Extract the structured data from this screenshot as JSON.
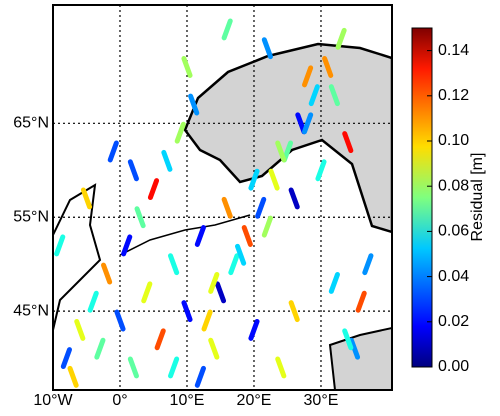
{
  "chart_data": {
    "type": "track-map",
    "colorbar_label": "Residual [m]",
    "xlim": [
      -10,
      40.6
    ],
    "ylim": [
      36.6,
      77.6
    ],
    "clim": [
      0,
      0.15
    ],
    "xticks": [
      {
        "value": -10,
        "label": "10°W"
      },
      {
        "value": 0,
        "label": "0°"
      },
      {
        "value": 10,
        "label": "10°E"
      },
      {
        "value": 20,
        "label": "20°E"
      },
      {
        "value": 30,
        "label": "30°E"
      }
    ],
    "yticks": [
      {
        "value": 45,
        "label": "45°N"
      },
      {
        "value": 55,
        "label": "55°N"
      },
      {
        "value": 65,
        "label": "65°N"
      }
    ],
    "cticks": [
      {
        "value": 0,
        "label": "0.00"
      },
      {
        "value": 0.02,
        "label": "0.02"
      },
      {
        "value": 0.04,
        "label": "0.04"
      },
      {
        "value": 0.06,
        "label": "0.06"
      },
      {
        "value": 0.08,
        "label": "0.08"
      },
      {
        "value": 0.1,
        "label": "0.10"
      },
      {
        "value": 0.12,
        "label": "0.12"
      },
      {
        "value": 0.14,
        "label": "0.14"
      }
    ],
    "lon": [
      -8,
      -6,
      -4,
      -2,
      1,
      3,
      5,
      7,
      9,
      11,
      13,
      15,
      17,
      19,
      21,
      23,
      25,
      27,
      29,
      31,
      33,
      35,
      -9,
      -5,
      -1,
      2,
      6,
      10,
      14,
      18,
      22,
      26,
      30,
      34,
      37,
      -7,
      -3,
      0,
      4,
      8,
      12,
      16,
      20,
      24,
      28,
      32,
      36,
      2,
      8,
      14,
      20,
      26,
      32,
      10,
      16,
      22,
      28,
      34,
      12,
      24
    ],
    "lat": [
      40,
      43,
      46,
      49,
      52,
      55,
      58,
      61,
      64,
      67,
      44,
      47,
      50,
      53,
      56,
      59,
      62,
      65,
      68,
      71,
      74,
      41,
      52,
      57,
      62,
      39,
      42,
      45,
      48,
      51,
      54,
      57,
      60,
      63,
      50,
      38,
      41,
      44,
      47,
      50,
      53,
      56,
      59,
      62,
      65,
      68,
      46,
      60,
      39,
      41,
      43,
      45,
      48,
      71,
      75,
      73,
      70,
      42,
      38,
      39
    ],
    "values": [
      0.03,
      0.09,
      0.06,
      0.11,
      0.02,
      0.07,
      0.13,
      0.05,
      0.08,
      0.04,
      0.1,
      0.01,
      0.06,
      0.12,
      0.03,
      0.09,
      0.07,
      0.02,
      0.05,
      0.11,
      0.08,
      0.04,
      0.06,
      0.1,
      0.03,
      0.07,
      0.12,
      0.02,
      0.09,
      0.05,
      0.08,
      0.01,
      0.06,
      0.13,
      0.04,
      0.1,
      0.07,
      0.03,
      0.09,
      0.06,
      0.02,
      0.11,
      0.05,
      0.08,
      0.04,
      0.07,
      0.12,
      0.03,
      0.06,
      0.09,
      0.02,
      0.1,
      0.05,
      0.08,
      0.07,
      0.04,
      0.11,
      0.06,
      0.03,
      0.09
    ]
  }
}
